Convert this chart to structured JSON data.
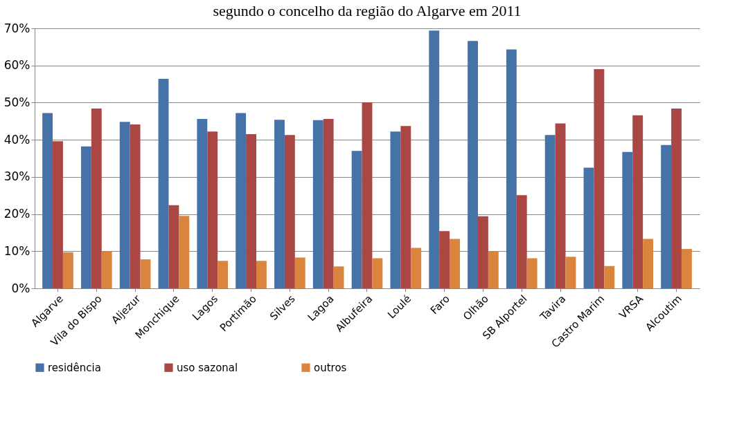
{
  "chart_data": {
    "type": "bar",
    "title": "segundo o concelho da região do Algarve em 2011",
    "categories": [
      "Algarve",
      "Vila do Bispo",
      "Aljezur",
      "Monchique",
      "Lagos",
      "Portimão",
      "Silves",
      "Lagoa",
      "Albufeira",
      "Loulé",
      "Faro",
      "Olhão",
      "SB Alportel",
      "Tavira",
      "Castro Marim",
      "VRSA",
      "Alcoutim"
    ],
    "series": [
      {
        "name": "residência",
        "color": "#4572a7",
        "values": [
          47.2,
          38.2,
          44.8,
          56.4,
          45.6,
          47.2,
          45.4,
          45.3,
          37.0,
          42.2,
          69.4,
          66.6,
          64.3,
          41.3,
          32.5,
          36.7,
          38.6
        ]
      },
      {
        "name": "uso sazonal",
        "color": "#aa4643",
        "values": [
          39.6,
          48.4,
          44.1,
          22.4,
          42.2,
          41.5,
          41.3,
          45.6,
          50.1,
          43.7,
          15.4,
          19.4,
          25.1,
          44.4,
          59.0,
          46.6,
          48.4
        ]
      },
      {
        "name": "outros",
        "color": "#db843d",
        "values": [
          9.7,
          10.0,
          7.8,
          19.5,
          7.4,
          7.4,
          8.3,
          5.9,
          8.1,
          10.9,
          13.3,
          10.0,
          8.1,
          8.5,
          6.0,
          13.3,
          10.6
        ]
      }
    ],
    "ylim": [
      0,
      70
    ],
    "yticks": [
      {
        "value": 0,
        "label": "0%"
      },
      {
        "value": 10,
        "label": "10%"
      },
      {
        "value": 20,
        "label": "20%"
      },
      {
        "value": 30,
        "label": "30%"
      },
      {
        "value": 40,
        "label": "40%"
      },
      {
        "value": 50,
        "label": "50%"
      },
      {
        "value": 60,
        "label": "60%"
      },
      {
        "value": 70,
        "label": "70%"
      }
    ],
    "grid": "y",
    "legend": "bottom"
  }
}
